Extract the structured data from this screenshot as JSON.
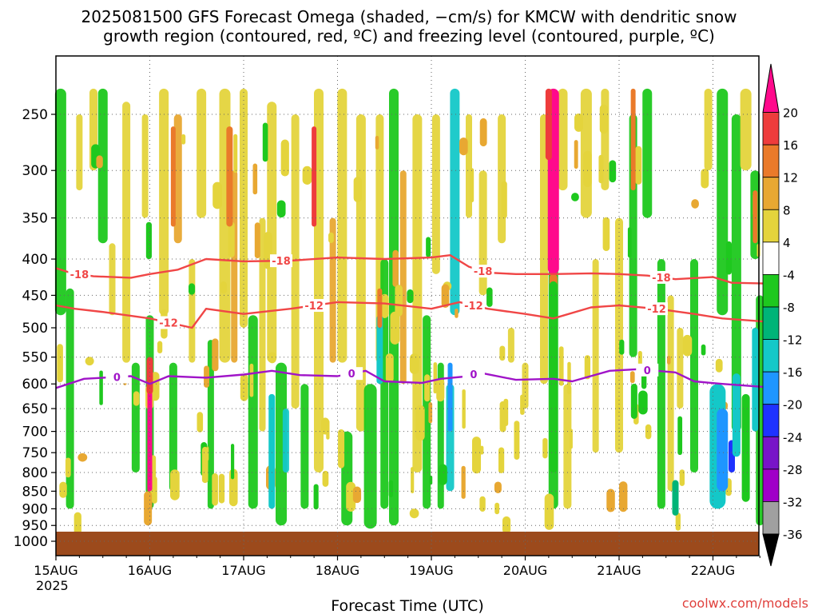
{
  "chart_data": {
    "type": "heatmap",
    "title_line1": "2025081500 GFS Forecast Omega (shaded, −cm/s) for KMCW with dendritic snow",
    "title_line2": "growth region (contoured, red, ºC) and freezing level (contoured, purple, ºC)",
    "xlabel": "Forecast Time (UTC)",
    "ylabel": "",
    "credit": "coolwx.com/models",
    "x_tick_labels": [
      "15AUG",
      "16AUG",
      "17AUG",
      "18AUG",
      "19AUG",
      "20AUG",
      "21AUG",
      "22AUG"
    ],
    "x_year_label": "2025",
    "x_range_days": [
      0,
      7.55
    ],
    "y_axis": {
      "scale": "log-pressure",
      "range_hpa": [
        1050,
        200
      ],
      "inverted": true
    },
    "y_tick_labels": [
      250,
      300,
      350,
      400,
      450,
      500,
      550,
      600,
      650,
      700,
      750,
      800,
      850,
      900,
      950,
      1000
    ],
    "grid": true,
    "colorbar": {
      "levels": [
        20,
        16,
        12,
        8,
        4,
        -4,
        -8,
        -12,
        -16,
        -20,
        -24,
        -28,
        -32,
        -36
      ],
      "colors": [
        "#ff0a8c",
        "#ee3c3c",
        "#ea7a2a",
        "#e8a832",
        "#e4d43c",
        "#ffffff",
        "#1ec81e",
        "#00b478",
        "#14c8c8",
        "#1e96ff",
        "#1e32ff",
        "#7814c8",
        "#a000c8",
        "#a0a0a0",
        "#000000"
      ]
    },
    "contours": [
      {
        "value": "-18",
        "color": "#f04646",
        "points": [
          [
            0,
            412
          ],
          [
            0.15,
            418
          ],
          [
            0.4,
            423
          ],
          [
            0.8,
            425
          ],
          [
            1.0,
            420
          ],
          [
            1.3,
            414
          ],
          [
            1.6,
            400
          ],
          [
            2.0,
            403
          ],
          [
            2.5,
            402
          ],
          [
            3.0,
            398
          ],
          [
            3.5,
            400
          ],
          [
            4.0,
            398
          ],
          [
            4.2,
            395
          ],
          [
            4.4,
            410
          ],
          [
            4.6,
            418
          ],
          [
            4.9,
            420
          ],
          [
            5.3,
            420
          ],
          [
            5.7,
            419
          ],
          [
            6.0,
            420
          ],
          [
            6.3,
            422
          ],
          [
            6.6,
            427
          ],
          [
            7.0,
            424
          ],
          [
            7.2,
            432
          ],
          [
            7.55,
            433
          ]
        ],
        "labels": [
          [
            0.25,
            "-18"
          ],
          [
            2.4,
            "-18"
          ],
          [
            4.55,
            "-18"
          ],
          [
            6.45,
            "-18"
          ]
        ]
      },
      {
        "value": "-12",
        "color": "#f04646",
        "points": [
          [
            0,
            465
          ],
          [
            0.2,
            470
          ],
          [
            0.5,
            475
          ],
          [
            1.0,
            485
          ],
          [
            1.45,
            500
          ],
          [
            1.6,
            470
          ],
          [
            2.0,
            478
          ],
          [
            2.5,
            470
          ],
          [
            3.0,
            460
          ],
          [
            3.5,
            462
          ],
          [
            4.0,
            470
          ],
          [
            4.3,
            460
          ],
          [
            4.6,
            470
          ],
          [
            5.0,
            478
          ],
          [
            5.3,
            485
          ],
          [
            5.7,
            468
          ],
          [
            6.0,
            465
          ],
          [
            6.4,
            470
          ],
          [
            6.8,
            478
          ],
          [
            7.1,
            485
          ],
          [
            7.55,
            490
          ]
        ],
        "labels": [
          [
            1.2,
            "-12"
          ],
          [
            2.75,
            "-12"
          ],
          [
            4.45,
            "-12"
          ],
          [
            6.4,
            "-12"
          ]
        ]
      },
      {
        "value": "0",
        "color": "#a014c8",
        "points": [
          [
            0,
            608
          ],
          [
            0.3,
            590
          ],
          [
            0.8,
            585
          ],
          [
            1.0,
            600
          ],
          [
            1.2,
            585
          ],
          [
            1.6,
            588
          ],
          [
            2.0,
            582
          ],
          [
            2.3,
            575
          ],
          [
            2.6,
            583
          ],
          [
            3.0,
            585
          ],
          [
            3.3,
            575
          ],
          [
            3.5,
            595
          ],
          [
            3.9,
            598
          ],
          [
            4.1,
            590
          ],
          [
            4.4,
            585
          ],
          [
            4.5,
            578
          ],
          [
            4.9,
            592
          ],
          [
            5.3,
            590
          ],
          [
            5.5,
            595
          ],
          [
            5.9,
            575
          ],
          [
            6.2,
            572
          ],
          [
            6.6,
            578
          ],
          [
            6.8,
            595
          ],
          [
            7.1,
            600
          ],
          [
            7.55,
            606
          ]
        ],
        "labels": [
          [
            0.65,
            "0"
          ],
          [
            3.15,
            "0"
          ],
          [
            4.45,
            "0"
          ],
          [
            6.3,
            "0"
          ]
        ]
      }
    ]
  }
}
